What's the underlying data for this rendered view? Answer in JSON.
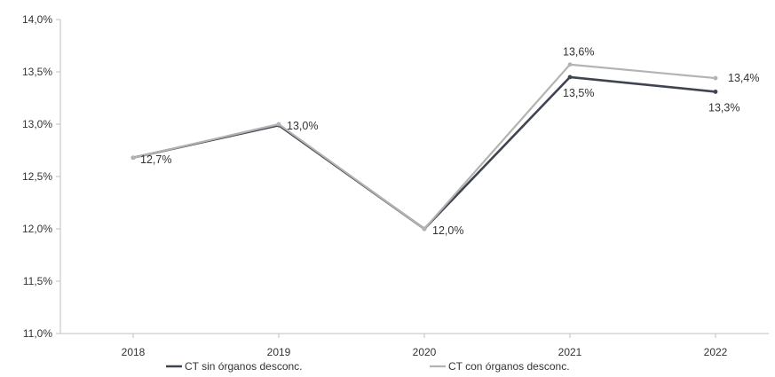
{
  "chart_data": {
    "type": "line",
    "categories": [
      "2018",
      "2019",
      "2020",
      "2021",
      "2022"
    ],
    "y_tick_labels": [
      "11,0%",
      "11,5%",
      "12,0%",
      "12,5%",
      "13,0%",
      "13,5%",
      "14,0%"
    ],
    "ylim": [
      11.0,
      14.0
    ],
    "y_tick_values": [
      11.0,
      11.5,
      12.0,
      12.5,
      13.0,
      13.5,
      14.0
    ],
    "grid": false,
    "legend_position": "bottom",
    "series": [
      {
        "name": "CT sin órganos desconc.",
        "values": [
          12.68,
          12.99,
          12.0,
          13.45,
          13.31
        ],
        "labels": [
          "",
          "",
          "",
          "13,5%",
          "13,3%"
        ],
        "color": "#3f4450"
      },
      {
        "name": "CT con órganos desconc.",
        "values": [
          12.68,
          13.0,
          12.0,
          13.57,
          13.44
        ],
        "labels": [
          "12,7%",
          "13,0%",
          "12,0%",
          "13,6%",
          "13,4%"
        ],
        "color": "#b3b3b3"
      }
    ]
  }
}
